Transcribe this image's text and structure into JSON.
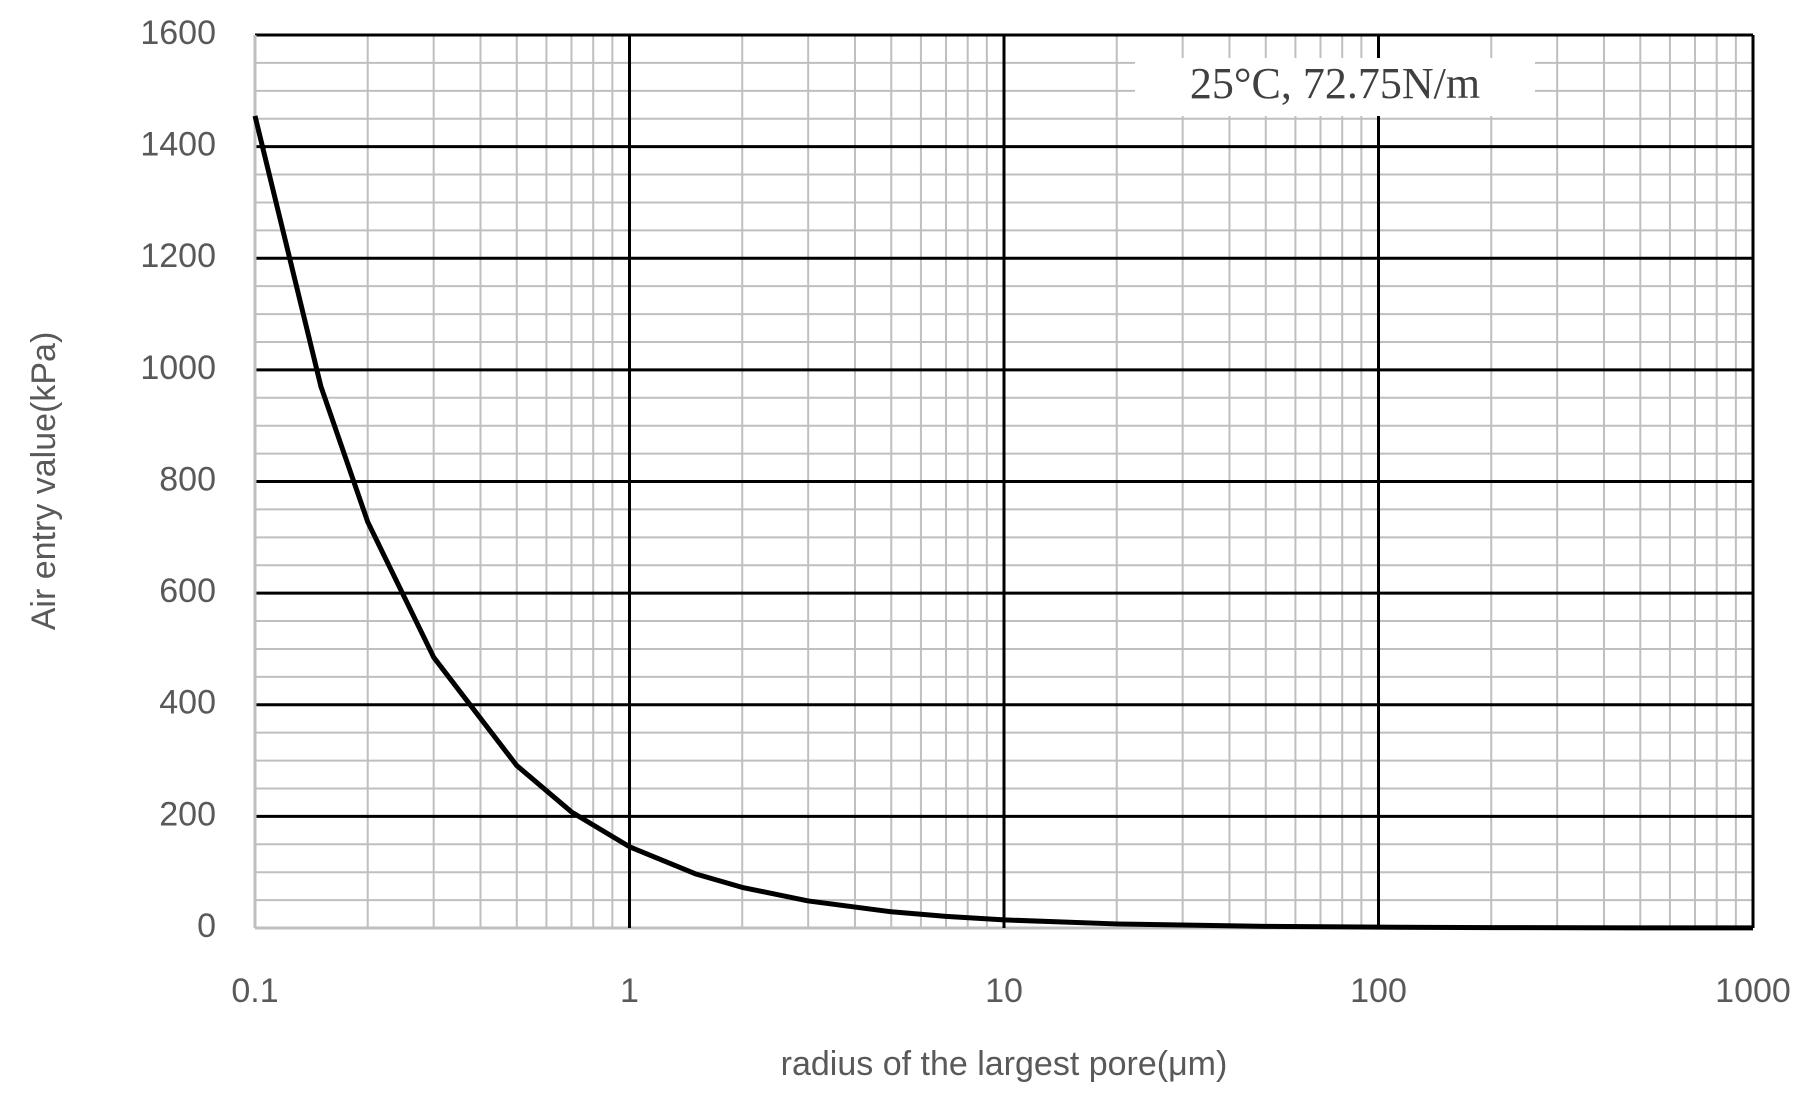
{
  "chart_data": {
    "type": "line",
    "xlabel": "radius of the largest pore(μm)",
    "ylabel": "Air entry value(kPa)",
    "annotation": "25°C, 72.75N/m",
    "x_log": true,
    "grid": true,
    "x": [
      0.1,
      0.15,
      0.2,
      0.3,
      0.5,
      0.7,
      1,
      1.5,
      2,
      3,
      5,
      7,
      10,
      20,
      50,
      100,
      200,
      500,
      1000
    ],
    "series": [
      {
        "name": "Air entry value",
        "color": "#000000",
        "values": [
          1455,
          970,
          727.5,
          485,
          291,
          207.9,
          145.5,
          97,
          72.75,
          48.5,
          29.1,
          20.8,
          14.55,
          7.28,
          2.91,
          1.46,
          0.73,
          0.29,
          0.15
        ]
      }
    ],
    "xlim": [
      0.1,
      1000
    ],
    "xticks": [
      0.1,
      1,
      10,
      100,
      1000
    ],
    "xminor_ticks": [
      0.2,
      0.3,
      0.4,
      0.5,
      0.6,
      0.7,
      0.8,
      0.9,
      2,
      3,
      4,
      5,
      6,
      7,
      8,
      9,
      20,
      30,
      40,
      50,
      60,
      70,
      80,
      90,
      200,
      300,
      400,
      500,
      600,
      700,
      800,
      900
    ],
    "ylim": [
      0,
      1600
    ],
    "yticks": [
      0,
      200,
      400,
      600,
      800,
      1000,
      1200,
      1400,
      1600
    ],
    "yminor_ticks": [
      50,
      100,
      150,
      250,
      300,
      350,
      450,
      500,
      550,
      650,
      700,
      750,
      850,
      900,
      950,
      1050,
      1100,
      1150,
      1250,
      1300,
      1350,
      1450,
      1500,
      1550
    ]
  }
}
